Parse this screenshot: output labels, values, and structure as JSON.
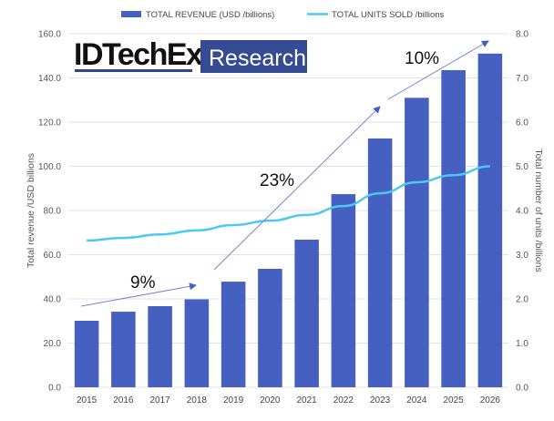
{
  "logo": {
    "brand": "IDTechEx",
    "tag": "Research"
  },
  "chart_data": {
    "type": "bar",
    "categories": [
      "2015",
      "2016",
      "2017",
      "2018",
      "2019",
      "2020",
      "2021",
      "2022",
      "2023",
      "2024",
      "2025",
      "2026"
    ],
    "series": [
      {
        "name": "TOTAL REVENUE (USD /billions)",
        "type": "bar",
        "axis": "left",
        "color": "#4560c0",
        "values": [
          30.1,
          34.2,
          36.7,
          39.8,
          47.8,
          53.6,
          66.8,
          87.4,
          112.6,
          131.0,
          143.5,
          151.0
        ]
      },
      {
        "name": "TOTAL UNITS SOLD /billions",
        "type": "line",
        "axis": "right",
        "color": "#4dc8f0",
        "values": [
          3.32,
          3.38,
          3.46,
          3.55,
          3.67,
          3.77,
          3.9,
          4.1,
          4.39,
          4.64,
          4.8,
          5.0
        ]
      }
    ],
    "ylabel": "Total revenue /USD billions",
    "y2label": "Total number of units /billions",
    "ylim": [
      0,
      160
    ],
    "y2lim": [
      0,
      8
    ],
    "yticks": [
      "0.0",
      "20.0",
      "40.0",
      "60.0",
      "80.0",
      "100.0",
      "120.0",
      "140.0",
      "160.0"
    ],
    "y2ticks": [
      "0.0",
      "1.0",
      "2.0",
      "3.0",
      "4.0",
      "5.0",
      "6.0",
      "7.0",
      "8.0"
    ],
    "grid": true,
    "legend": "top",
    "annotations": [
      {
        "label": "9%",
        "from": "2015",
        "to": "2018"
      },
      {
        "label": "23%",
        "from": "2019",
        "to": "2023"
      },
      {
        "label": "10%",
        "from": "2023",
        "to": "2026"
      }
    ]
  }
}
